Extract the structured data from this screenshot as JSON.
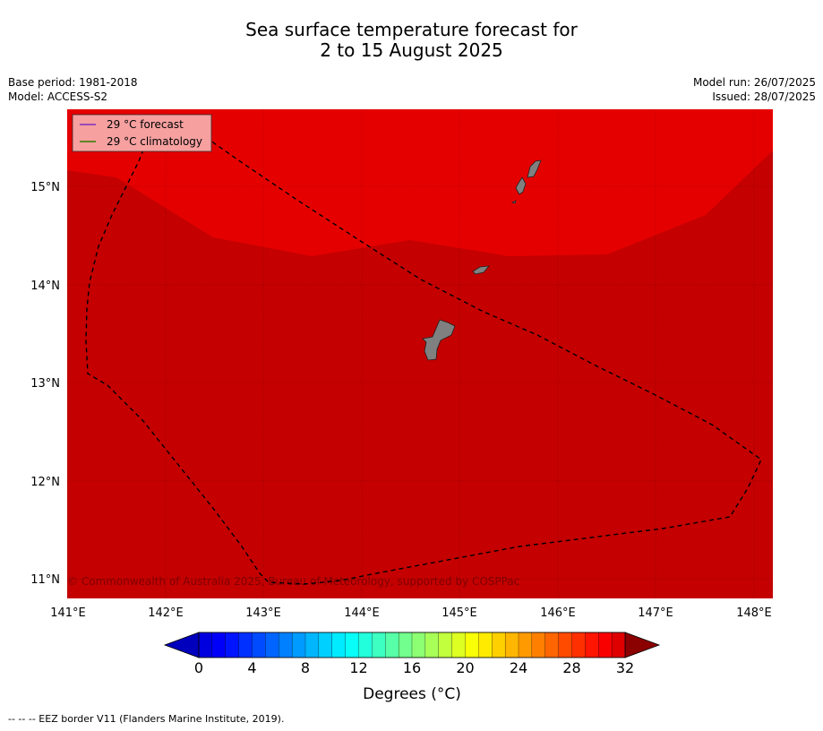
{
  "title_line1": "Sea surface temperature forecast for",
  "title_line2": "2 to 15 August 2025",
  "meta_left": [
    "Base period: 1981-2018",
    "Model: ACCESS-S2"
  ],
  "meta_right": [
    "Model run: 26/07/2025",
    "Issued: 28/07/2025"
  ],
  "legend": [
    {
      "label": "29 °C  forecast",
      "color": "#7b2fbe"
    },
    {
      "label": "29 °C  climatology",
      "color": "#2e7d00"
    }
  ],
  "copyright": "© Commonwealth of Australia 2025, Bureau of Meteorology, supported by COSPPac",
  "footer": "--  --  -- EEZ border V11 (Flanders Marine Institute, 2019).",
  "lon_ticks": [
    "141°E",
    "142°E",
    "143°E",
    "144°E",
    "145°E",
    "146°E",
    "147°E",
    "148°E"
  ],
  "lat_ticks": [
    "11°N",
    "12°N",
    "13°N",
    "14°N",
    "15°N"
  ],
  "colorbar": {
    "min": 0,
    "max": 32,
    "step": 1,
    "tick_labels": [
      "0",
      "4",
      "8",
      "12",
      "16",
      "20",
      "24",
      "28",
      "32"
    ],
    "label": "Degrees (°C)"
  },
  "colors": {
    "band_30_31": "#e50000",
    "band_29_30": "#c40000",
    "land": "#808080"
  }
}
